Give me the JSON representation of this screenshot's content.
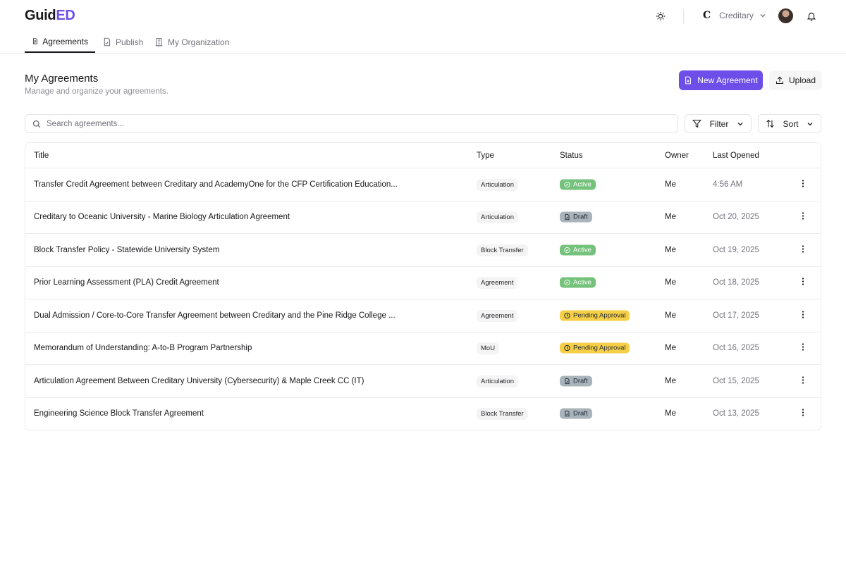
{
  "brand": {
    "name_a": "Guid",
    "name_b": "ED",
    "accent": "#6d4ee8"
  },
  "nav": {
    "tabs": [
      {
        "label": "Agreements",
        "icon": "file-text-icon"
      },
      {
        "label": "Publish",
        "icon": "file-check-icon"
      },
      {
        "label": "My Organization",
        "icon": "building-icon"
      }
    ]
  },
  "header": {
    "org_initial": "C",
    "org_name": "Creditary"
  },
  "page": {
    "title": "My Agreements",
    "subtitle": "Manage and organize your agreements.",
    "new_label": "New Agreement",
    "upload_label": "Upload"
  },
  "toolbar": {
    "search_placeholder": "Search agreements...",
    "filter_label": "Filter",
    "sort_label": "Sort"
  },
  "table": {
    "columns": [
      "Title",
      "Type",
      "Status",
      "Owner",
      "Last Opened"
    ],
    "rows": [
      {
        "title": "Transfer Credit Agreement between Creditary and AcademyOne for the CFP Certification Education...",
        "type": "Articulation",
        "status": "Active",
        "owner": "Me",
        "date": "4:56 AM"
      },
      {
        "title": "Creditary to Oceanic University - Marine Biology Articulation Agreement",
        "type": "Articulation",
        "status": "Draft",
        "owner": "Me",
        "date": "Oct 20, 2025"
      },
      {
        "title": "Block Transfer Policy - Statewide University System",
        "type": "Block Transfer",
        "status": "Active",
        "owner": "Me",
        "date": "Oct 19, 2025"
      },
      {
        "title": "Prior Learning Assessment (PLA) Credit Agreement",
        "type": "Agreement",
        "status": "Active",
        "owner": "Me",
        "date": "Oct 18, 2025"
      },
      {
        "title": "Dual Admission / Core-to-Core Transfer Agreement between Creditary and the Pine Ridge College ...",
        "type": "Agreement",
        "status": "Pending Approval",
        "owner": "Me",
        "date": "Oct 17, 2025"
      },
      {
        "title": "Memorandum of Understanding: A-to-B Program Partnership",
        "type": "MoU",
        "status": "Pending Approval",
        "owner": "Me",
        "date": "Oct 16, 2025"
      },
      {
        "title": "Articulation Agreement Between Creditary University (Cybersecurity) & Maple Creek CC (IT)",
        "type": "Articulation",
        "status": "Draft",
        "owner": "Me",
        "date": "Oct 15, 2025"
      },
      {
        "title": "Engineering Science Block Transfer Agreement",
        "type": "Block Transfer",
        "status": "Draft",
        "owner": "Me",
        "date": "Oct 13, 2025"
      }
    ]
  },
  "status_colors": {
    "Active": "#74c27b",
    "Draft": "#a9b3ba",
    "Pending Approval": "#f6cf46"
  }
}
